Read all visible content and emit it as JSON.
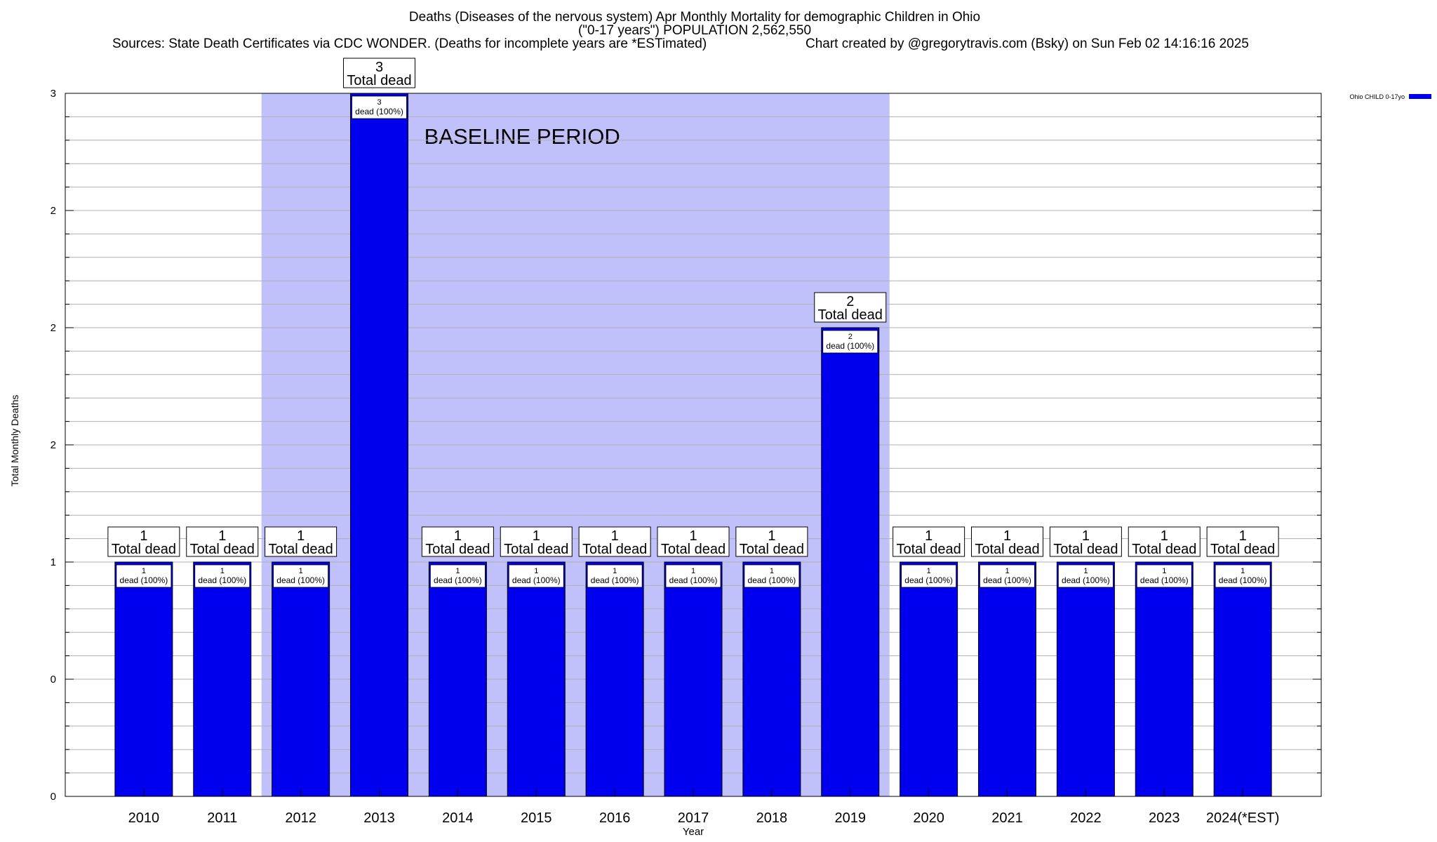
{
  "chart_data": {
    "type": "bar",
    "title": "Deaths (Diseases of the nervous system) Apr Monthly Mortality for demographic Children in Ohio",
    "subtitle": "(\"0-17 years\") POPULATION 2,562,550",
    "sources": "Sources: State Death Certificates via CDC WONDER. (Deaths for incomplete years are *ESTimated)",
    "credit": "Chart created by @gregorytravis.com (Bsky) on Sun Feb 02 14:16:16 2025",
    "xlabel": "Year",
    "ylabel": "Total Monthly Deaths",
    "ylim": [
      0,
      3
    ],
    "yticks": [
      0,
      0.5,
      1,
      1.5,
      2,
      2.5,
      3
    ],
    "ytick_labels": [
      "0",
      "0",
      "1",
      "2",
      "2",
      "2",
      "3"
    ],
    "grid": true,
    "legend_position": "top-right",
    "series": [
      {
        "name": "Ohio CHILD 0-17yo",
        "color": "#0000ee",
        "values": [
          1,
          1,
          1,
          3,
          1,
          1,
          1,
          1,
          1,
          2,
          1,
          1,
          1,
          1,
          1
        ]
      }
    ],
    "categories": [
      "2010",
      "2011",
      "2012",
      "2013",
      "2014",
      "2015",
      "2016",
      "2017",
      "2018",
      "2019",
      "2020",
      "2021",
      "2022",
      "2023",
      "2024(*EST)"
    ],
    "total_labels": [
      "1",
      "1",
      "1",
      "3",
      "1",
      "1",
      "1",
      "1",
      "1",
      "2",
      "1",
      "1",
      "1",
      "1",
      "1"
    ],
    "total_label_suffix": "Total dead",
    "inner_labels": [
      "1",
      "1",
      "1",
      "3",
      "1",
      "1",
      "1",
      "1",
      "1",
      "2",
      "1",
      "1",
      "1",
      "1",
      "1"
    ],
    "inner_label_suffix": "dead (100%)",
    "baseline_period": {
      "label": "BASELINE PERIOD",
      "start": "2012",
      "end": "2019",
      "color": "#c0c0fa"
    }
  }
}
